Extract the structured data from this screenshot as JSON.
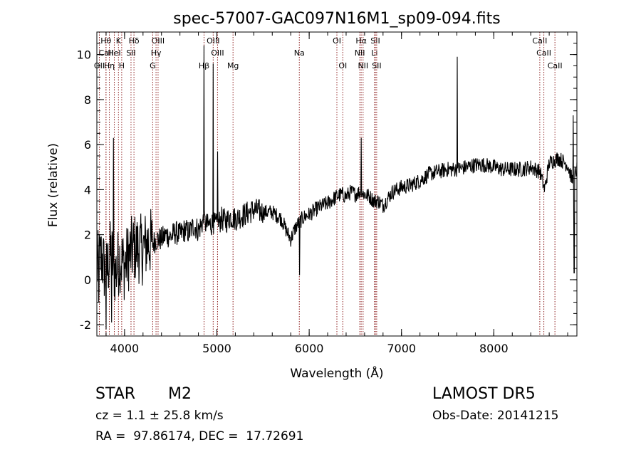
{
  "chart_data": {
    "type": "line",
    "title": "spec-57007-GAC097N16M1_sp09-094.fits",
    "xlabel": "Wavelength (Å)",
    "ylabel": "Flux (relative)",
    "xlim": [
      3700,
      8900
    ],
    "ylim": [
      -2.5,
      11.0
    ],
    "xticks": [
      4000,
      5000,
      6000,
      7000,
      8000
    ],
    "yticks": [
      -2,
      0,
      2,
      4,
      6,
      8,
      10
    ],
    "grid": false,
    "line_color": "#000000",
    "marker_color": "#8b1a1a",
    "series": [
      {
        "x": [
          3700,
          3750,
          3800,
          3850,
          3900,
          3950,
          4000,
          4050,
          4100,
          4150,
          4200,
          4250,
          4300,
          4350,
          4400,
          4450,
          4500,
          4550,
          4600,
          4650,
          4700,
          4750,
          4800,
          4850,
          4900,
          4950,
          5000,
          5050,
          5100,
          5150,
          5200,
          5300,
          5400,
          5500,
          5600,
          5700,
          5750,
          5800,
          5850,
          5900,
          5950,
          6000,
          6100,
          6200,
          6300,
          6350,
          6400,
          6450,
          6500,
          6550,
          6600,
          6650,
          6700,
          6750,
          6800,
          6850,
          6900,
          6950,
          7000,
          7100,
          7200,
          7300,
          7400,
          7500,
          7600,
          7700,
          7800,
          7900,
          8000,
          8100,
          8200,
          8300,
          8400,
          8500,
          8550,
          8600,
          8700,
          8800,
          8850,
          8900
        ],
        "y": [
          0.5,
          1.0,
          0.2,
          1.2,
          0.3,
          1.0,
          0.6,
          1.1,
          1.4,
          1.4,
          1.3,
          1.7,
          1.6,
          1.8,
          1.8,
          2.0,
          1.9,
          2.1,
          2.0,
          2.2,
          2.1,
          2.4,
          2.2,
          2.6,
          2.4,
          2.5,
          2.4,
          2.7,
          2.6,
          2.8,
          2.7,
          2.9,
          3.1,
          3.0,
          3.0,
          2.7,
          2.2,
          1.8,
          2.3,
          2.6,
          2.8,
          2.9,
          3.2,
          3.4,
          3.7,
          3.8,
          3.7,
          3.9,
          3.8,
          3.9,
          3.8,
          3.7,
          3.5,
          3.5,
          3.3,
          3.6,
          3.9,
          4.0,
          4.1,
          4.2,
          4.4,
          4.7,
          4.8,
          4.9,
          4.9,
          5.0,
          5.1,
          5.1,
          5.0,
          4.9,
          4.9,
          4.9,
          5.0,
          4.8,
          4.0,
          5.2,
          5.4,
          5.1,
          4.4,
          4.9
        ]
      }
    ],
    "line_markers": [
      {
        "label": "Hθ",
        "x": 3798,
        "row": 0
      },
      {
        "label": "CaII",
        "x": 3800,
        "row": 1
      },
      {
        "label": "OII",
        "x": 3727,
        "row": 2
      },
      {
        "label": "K",
        "x": 3934,
        "row": 0
      },
      {
        "label": "HeI",
        "x": 3889,
        "row": 1
      },
      {
        "label": "Hη",
        "x": 3835,
        "row": 2
      },
      {
        "label": "Hδ",
        "x": 4102,
        "row": 0
      },
      {
        "label": "SII",
        "x": 4070,
        "row": 1
      },
      {
        "label": "H",
        "x": 3969,
        "row": 2
      },
      {
        "label": "OIII",
        "x": 4363,
        "row": 0
      },
      {
        "label": "Hγ",
        "x": 4341,
        "row": 1
      },
      {
        "label": "G",
        "x": 4305,
        "row": 2
      },
      {
        "label": "OIII",
        "x": 4960,
        "row": 0
      },
      {
        "label": "OIII",
        "x": 5007,
        "row": 1
      },
      {
        "label": "Hβ",
        "x": 4861,
        "row": 2
      },
      {
        "label": "Mg",
        "x": 5175,
        "row": 2
      },
      {
        "label": "Na",
        "x": 5893,
        "row": 1
      },
      {
        "label": "OI",
        "x": 6300,
        "row": 0
      },
      {
        "label": "OI",
        "x": 6364,
        "row": 2
      },
      {
        "label": "Hα",
        "x": 6563,
        "row": 0
      },
      {
        "label": "NII",
        "x": 6548,
        "row": 1
      },
      {
        "label": "NII",
        "x": 6584,
        "row": 2
      },
      {
        "label": "SII",
        "x": 6717,
        "row": 0
      },
      {
        "label": "Li",
        "x": 6708,
        "row": 1
      },
      {
        "label": "SII",
        "x": 6731,
        "row": 2
      },
      {
        "label": "CaII",
        "x": 8498,
        "row": 0
      },
      {
        "label": "CaII",
        "x": 8542,
        "row": 1
      },
      {
        "label": "CaII",
        "x": 8662,
        "row": 2
      }
    ]
  },
  "info": {
    "object_class": "STAR",
    "subclass": "M2",
    "survey": "LAMOST DR5",
    "cz": "cz = 1.1 ± 25.8 km/s",
    "obs_date": "Obs-Date: 20141215",
    "coords": "RA =  97.86174, DEC =  17.72691"
  }
}
